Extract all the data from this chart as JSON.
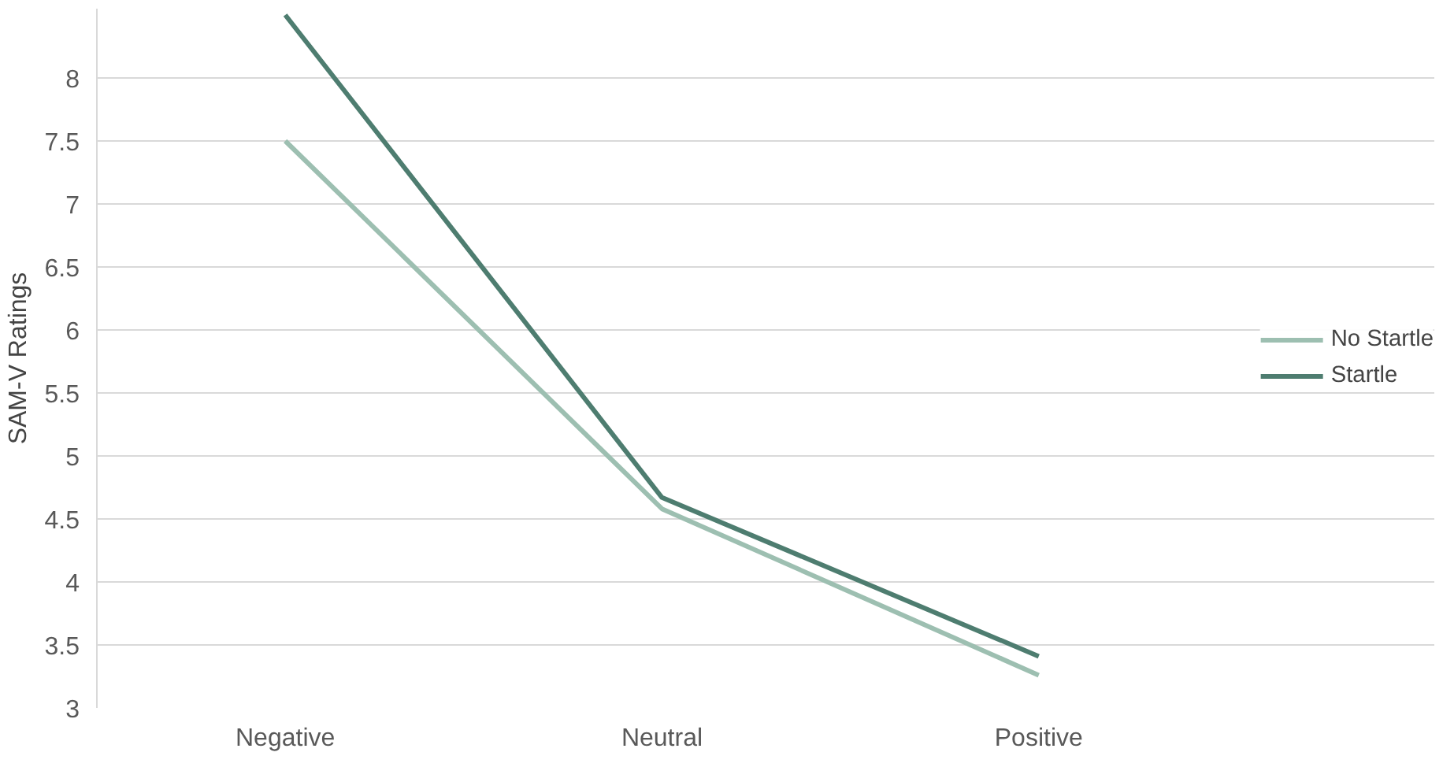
{
  "chart_data": {
    "type": "line",
    "ylabel": "SAM-V Ratings",
    "categories": [
      "Negative",
      "Neutral",
      "Positive"
    ],
    "series": [
      {
        "name": "No Startle",
        "color": "#9dbfb1",
        "values": [
          7.5,
          4.58,
          3.26
        ]
      },
      {
        "name": "Startle",
        "color": "#4e7d70",
        "values": [
          8.5,
          4.67,
          3.41
        ]
      }
    ],
    "ylim": [
      3,
      8.55
    ],
    "yticks": [
      3,
      3.5,
      4,
      4.5,
      5,
      5.5,
      6,
      6.5,
      7,
      7.5,
      8
    ],
    "grid": "y",
    "legend": "right",
    "marker": "none",
    "line_style": "solid"
  }
}
